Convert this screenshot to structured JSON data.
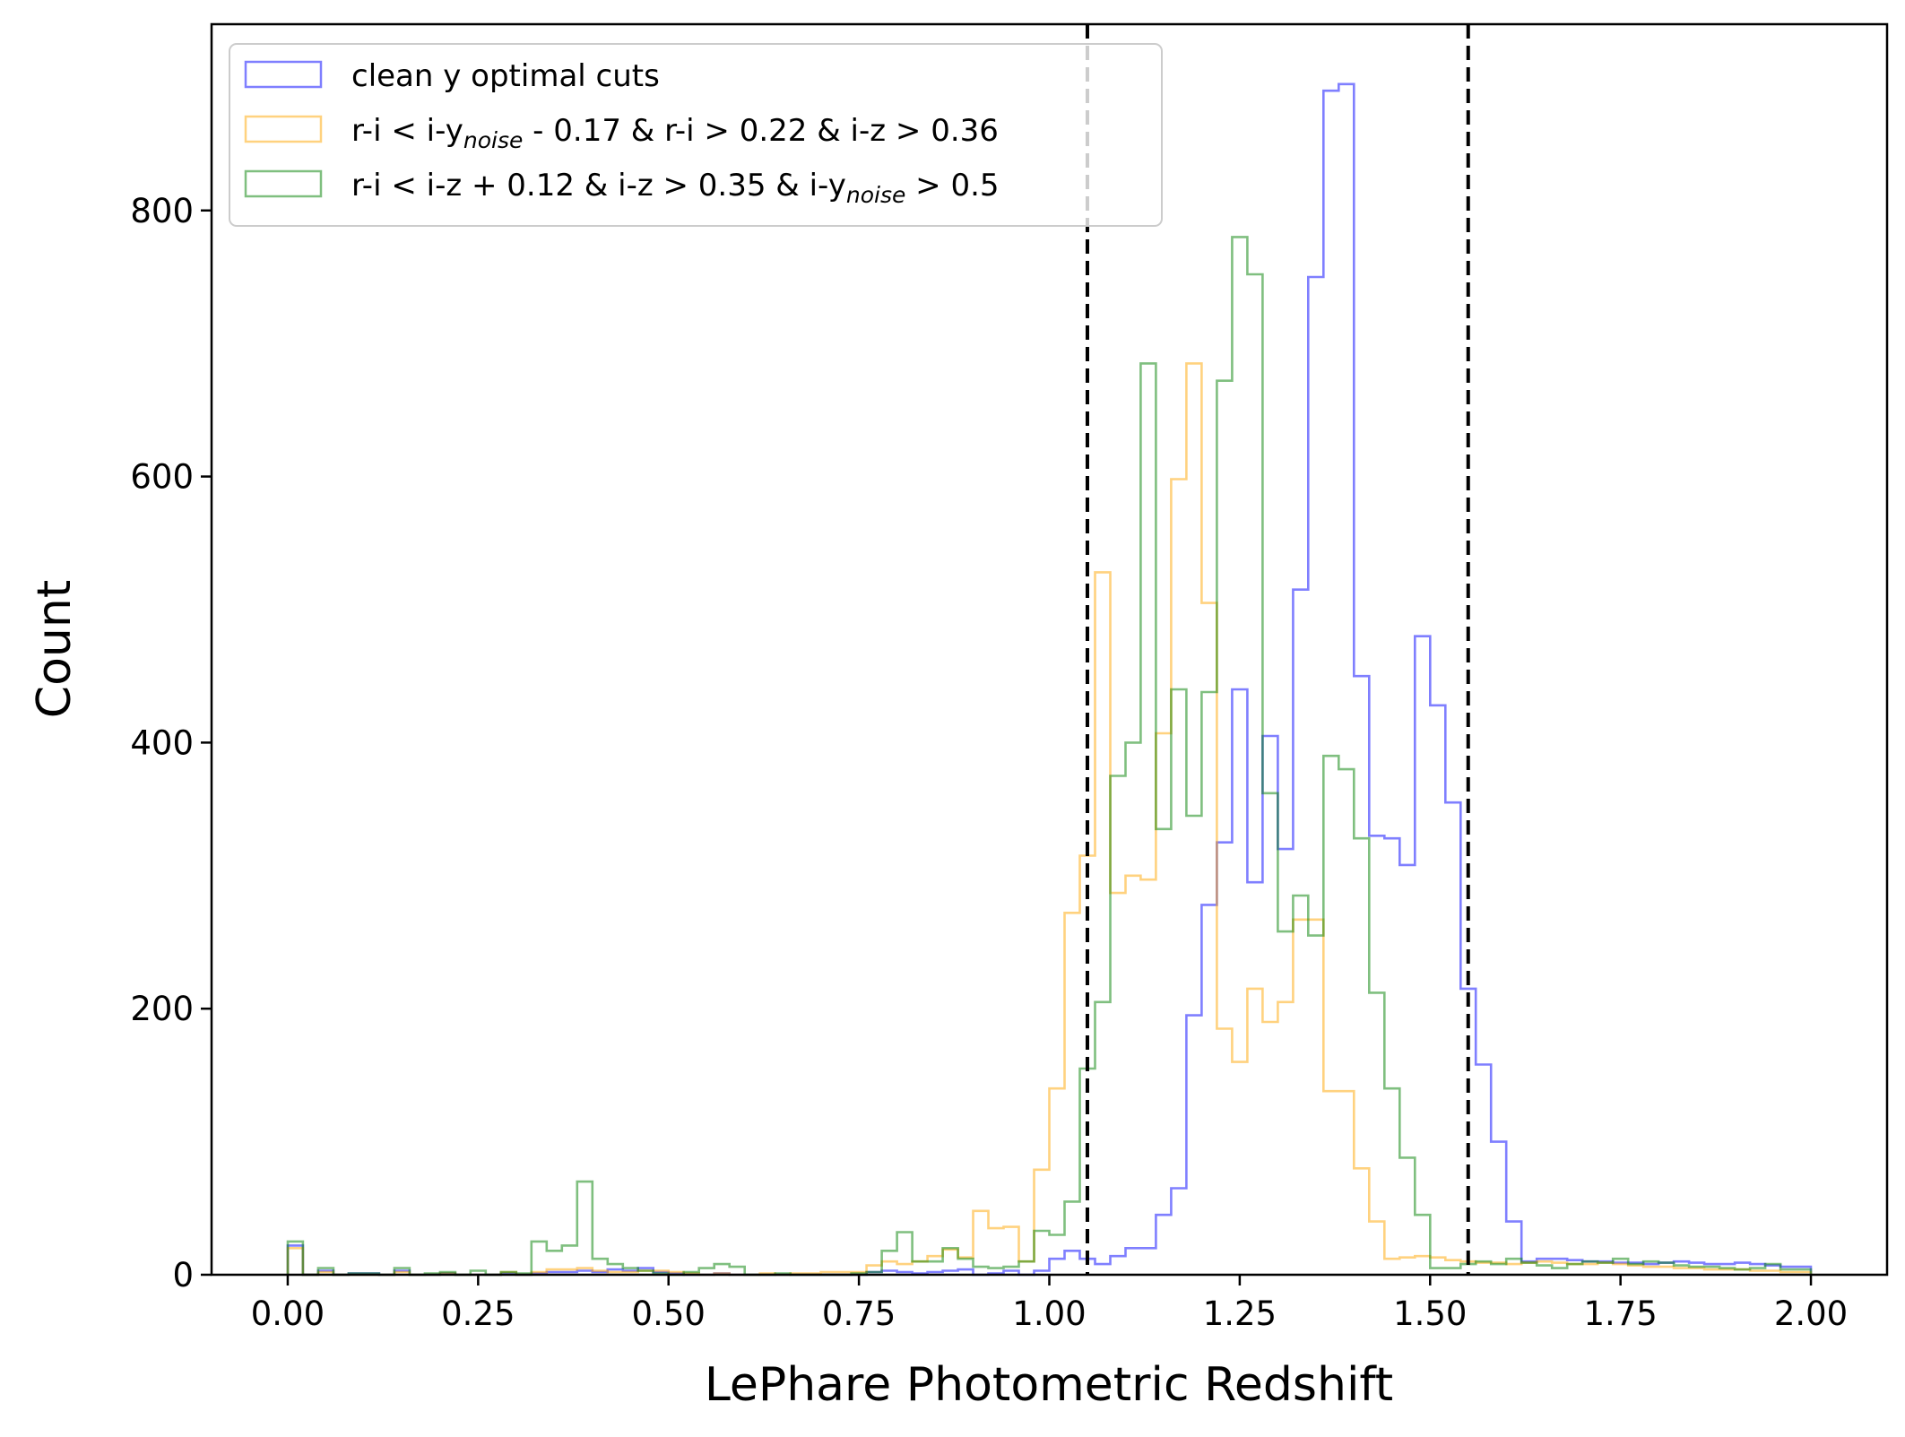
{
  "chart_data": {
    "type": "histogram",
    "xlabel": "LePhare Photometric Redshift",
    "ylabel": "Count",
    "xlim": [
      -0.1,
      2.1
    ],
    "ylim": [
      0,
      940
    ],
    "x_ticks": [
      "0.00",
      "0.25",
      "0.50",
      "0.75",
      "1.00",
      "1.25",
      "1.50",
      "1.75",
      "2.00"
    ],
    "y_ticks": [
      "0",
      "200",
      "400",
      "600",
      "800"
    ],
    "bin_start": 0.0,
    "bin_width": 0.02,
    "vlines": [
      1.05,
      1.55
    ],
    "vline_style": "dashed black",
    "legend_location": "upper-left",
    "series": [
      {
        "name": "clean y optimal cuts",
        "color": "#0000ff",
        "values": [
          22,
          0,
          3,
          0,
          1,
          1,
          0,
          3,
          0,
          0,
          1,
          0,
          0,
          0,
          1,
          0,
          1,
          2,
          2,
          3,
          2,
          4,
          3,
          5,
          2,
          1,
          0,
          0,
          1,
          0,
          0,
          0,
          0,
          0,
          0,
          0,
          0,
          0,
          2,
          3,
          2,
          1,
          2,
          3,
          4,
          0,
          1,
          3,
          0,
          3,
          12,
          18,
          12,
          8,
          14,
          20,
          20,
          45,
          65,
          195,
          278,
          325,
          440,
          295,
          405,
          320,
          515,
          750,
          890,
          895,
          450,
          330,
          328,
          308,
          480,
          428,
          355,
          215,
          158,
          100,
          40,
          10,
          12,
          12,
          11,
          10,
          10,
          9,
          9,
          8,
          9,
          10,
          9,
          8,
          8,
          9,
          8,
          7,
          6,
          6
        ]
      },
      {
        "name": "r-i < i-y$_{noise}$ - 0.17 & r-i > 0.22 & i-z > 0.36",
        "color": "#ffa500",
        "values": [
          20,
          0,
          2,
          0,
          0,
          0,
          0,
          2,
          0,
          0,
          1,
          0,
          0,
          0,
          2,
          0,
          2,
          4,
          4,
          5,
          3,
          2,
          2,
          3,
          3,
          2,
          1,
          0,
          1,
          0,
          0,
          1,
          0,
          1,
          1,
          2,
          2,
          2,
          7,
          10,
          8,
          10,
          14,
          19,
          13,
          48,
          35,
          36,
          10,
          79,
          140,
          272,
          315,
          528,
          287,
          300,
          297,
          407,
          598,
          685,
          505,
          185,
          160,
          215,
          190,
          205,
          267,
          267,
          138,
          138,
          80,
          40,
          12,
          13,
          14,
          13,
          11,
          10,
          9,
          9,
          8,
          9,
          10,
          9,
          8,
          8,
          9,
          8,
          7,
          6,
          6,
          5,
          5,
          4,
          4,
          4,
          3,
          3,
          2,
          2
        ]
      },
      {
        "name": "r-i < i-z + 0.12 & i-z > 0.35 & i-y$_{noise}$ > 0.5",
        "color": "#008000",
        "values": [
          25,
          0,
          5,
          0,
          1,
          1,
          0,
          5,
          0,
          1,
          2,
          0,
          3,
          0,
          2,
          1,
          25,
          18,
          22,
          70,
          12,
          8,
          5,
          3,
          1,
          0,
          2,
          5,
          8,
          6,
          0,
          0,
          1,
          0,
          0,
          0,
          0,
          1,
          2,
          18,
          32,
          10,
          10,
          20,
          12,
          6,
          5,
          6,
          10,
          33,
          30,
          55,
          155,
          205,
          375,
          400,
          685,
          335,
          440,
          345,
          438,
          672,
          780,
          752,
          362,
          258,
          285,
          255,
          390,
          380,
          328,
          212,
          140,
          88,
          45,
          5,
          5,
          8,
          10,
          8,
          12,
          9,
          7,
          5,
          8,
          10,
          9,
          12,
          8,
          10,
          9,
          7,
          6,
          6,
          5,
          4,
          5,
          8,
          4,
          4
        ]
      }
    ]
  },
  "legend": {
    "entries": [
      {
        "text": "clean y optimal cuts"
      },
      {
        "pre": "r-i < i-y",
        "sub": "noise",
        "post": " - 0.17 & r-i > 0.22 & i-z > 0.36"
      },
      {
        "pre": "r-i < i-z + 0.12 & i-z > 0.35 & i-y",
        "sub": "noise",
        "post": " > 0.5"
      }
    ]
  }
}
